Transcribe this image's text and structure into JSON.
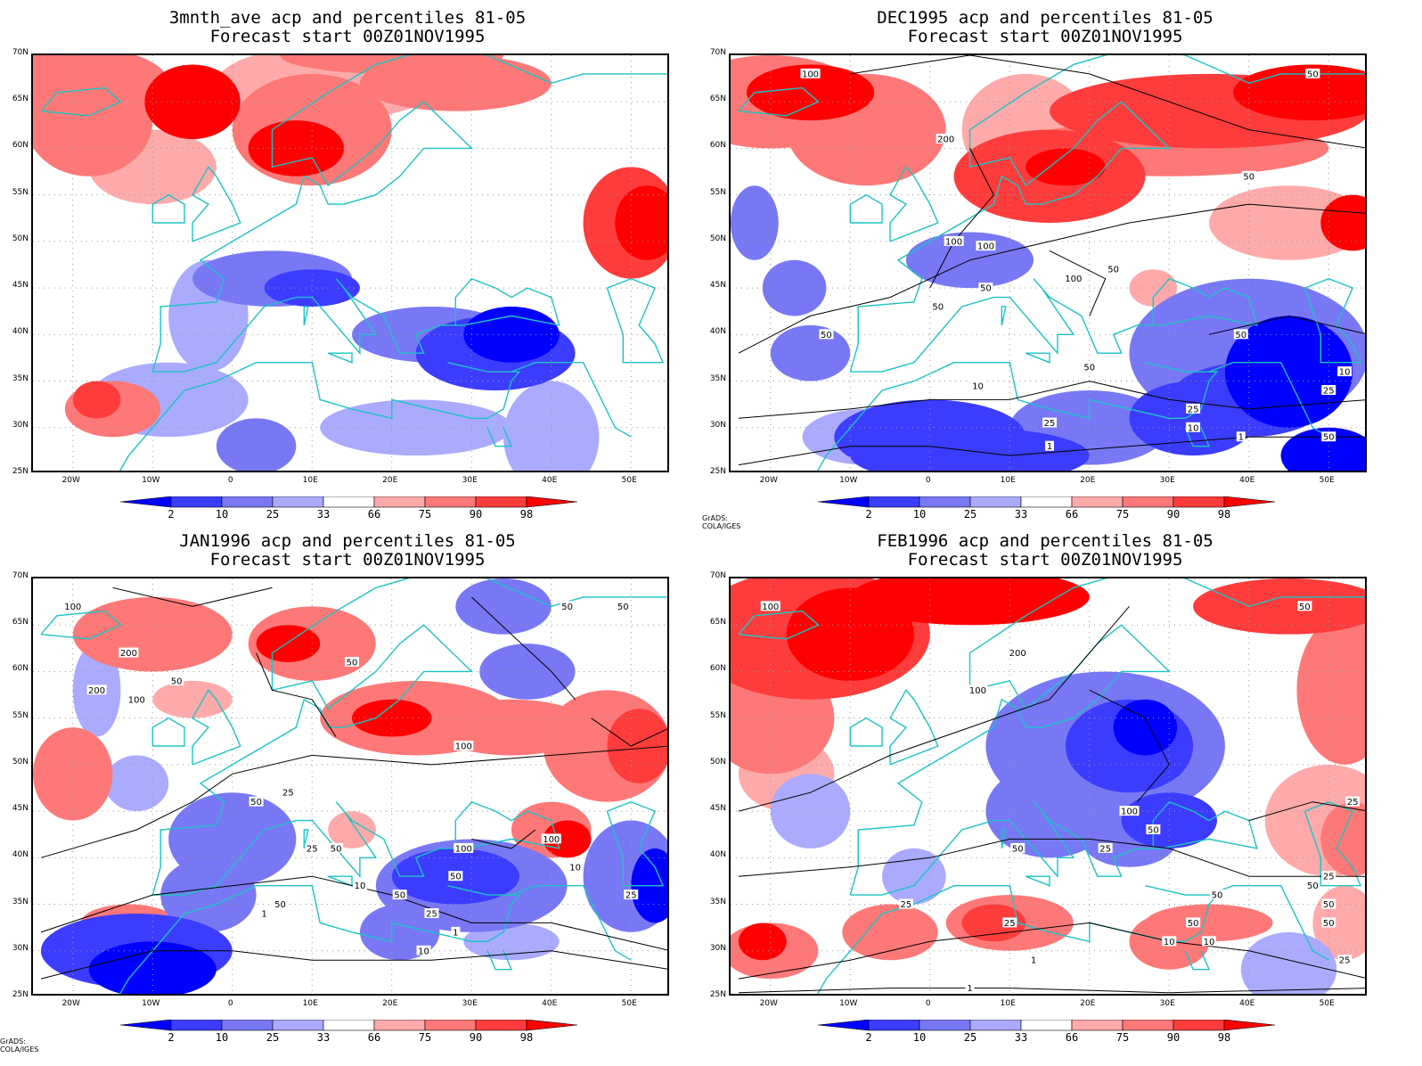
{
  "panels": [
    {
      "title1": "3mnth_ave acp and percentiles 81-05",
      "title2": "Forecast start 00Z01NOV1995",
      "credit": "",
      "contours": []
    },
    {
      "title1": "DEC1995 acp and percentiles 81-05",
      "title2": "Forecast start 00Z01NOV1995",
      "credit": "GrADS: COLA/IGES",
      "contours": [
        "100",
        "200",
        "100",
        "100",
        "50",
        "50",
        "50",
        "50",
        "100",
        "50",
        "10",
        "25",
        "1",
        "25",
        "10",
        "1",
        "50",
        "50",
        "50",
        "25",
        "10",
        "50"
      ]
    },
    {
      "title1": "JAN1996 acp and percentiles 81-05",
      "title2": "Forecast start 00Z01NOV1995",
      "credit": "GrADS: COLA/IGES",
      "contours": [
        "100",
        "200",
        "50",
        "200",
        "100",
        "50",
        "50",
        "50",
        "100",
        "25",
        "50",
        "50",
        "100",
        "25",
        "50",
        "100",
        "50",
        "25",
        "10",
        "1",
        "10",
        "1",
        "50",
        "25",
        "10"
      ]
    },
    {
      "title1": "FEB1996 acp and percentiles 81-05",
      "title2": "Forecast start 00Z01NOV1995",
      "credit": "",
      "contours": [
        "100",
        "200",
        "100",
        "50",
        "50",
        "25",
        "50",
        "100",
        "50",
        "50",
        "25",
        "10",
        "25",
        "1",
        "25",
        "10",
        "1",
        "50",
        "25",
        "50",
        "50",
        "25"
      ]
    }
  ],
  "lat_labels": [
    "70N",
    "65N",
    "60N",
    "55N",
    "50N",
    "45N",
    "40N",
    "35N",
    "30N",
    "25N"
  ],
  "lon_labels": [
    "20W",
    "10W",
    "0",
    "10E",
    "20E",
    "30E",
    "40E",
    "50E"
  ],
  "colorbar": {
    "labels": [
      "2",
      "10",
      "25",
      "33",
      "66",
      "75",
      "90",
      "98"
    ],
    "colors": [
      "#0000ff",
      "#3c3cff",
      "#7878f5",
      "#aaaaff",
      "#ffffff",
      "#ffaaaa",
      "#ff7878",
      "#ff3c3c",
      "#ff0000"
    ]
  },
  "colors": {
    "coast": "#1cc3c3",
    "contour": "#000000"
  }
}
